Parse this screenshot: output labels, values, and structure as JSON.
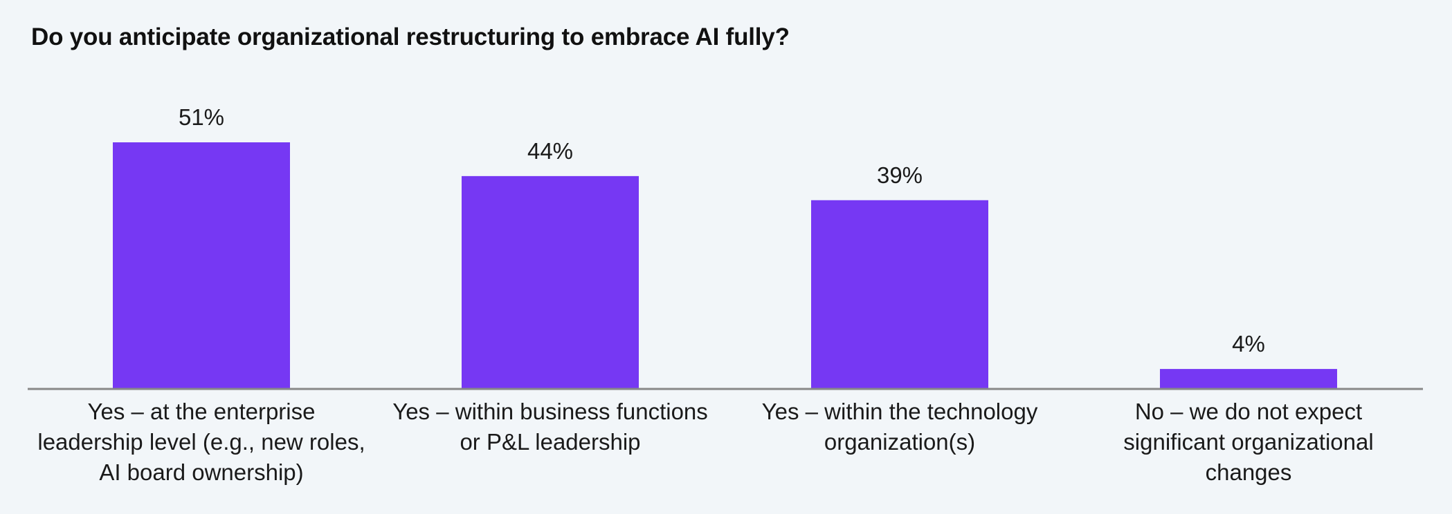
{
  "chart_data": {
    "type": "bar",
    "title": "Do you anticipate organizational restructuring to embrace AI fully?",
    "categories": [
      "Yes – at the enterprise leadership level (e.g., new roles, AI board ownership)",
      "Yes – within business functions or P&L leadership",
      "Yes – within the technology organization(s)",
      "No – we do not expect significant organizational changes"
    ],
    "values": [
      51,
      44,
      39,
      4
    ],
    "value_labels": [
      "51%",
      "44%",
      "39%",
      "4%"
    ],
    "unit": "%",
    "xlabel": "",
    "ylabel": "",
    "ylim": [
      0,
      51
    ],
    "grid": false,
    "legend": "none",
    "colors": {
      "bar": "#7638f3",
      "axis": "#888888",
      "text": "#111111",
      "background": "#f2f6f9"
    }
  }
}
